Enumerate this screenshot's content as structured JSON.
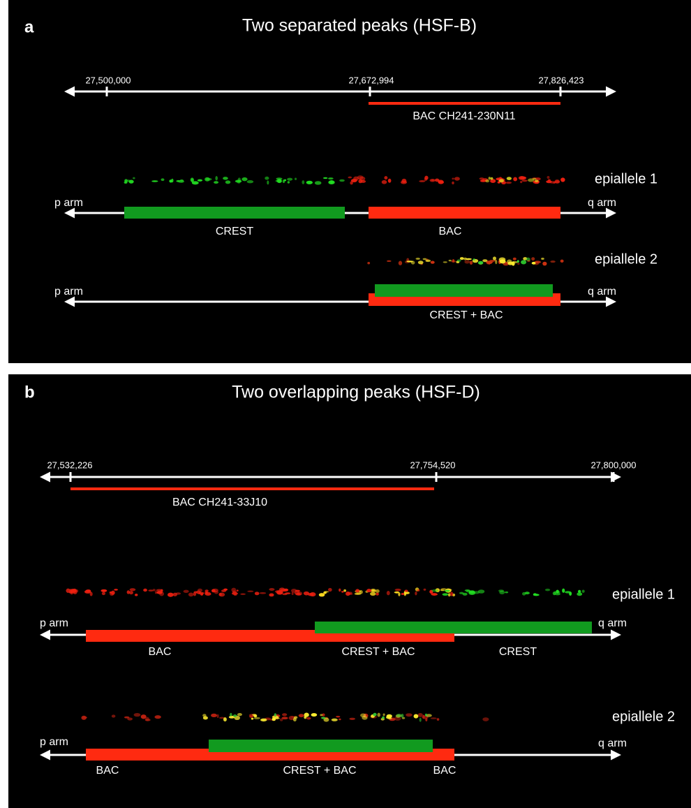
{
  "panels": [
    {
      "label": "a",
      "title": "Two separated peaks (HSF-B)",
      "scale_ticks": [
        "27,500,000",
        "27,672,994",
        "27,826,423"
      ],
      "bac": "BAC CH241-230N11",
      "fibers": [
        {
          "label": "epiallele 1",
          "p_arm": "p arm",
          "q_arm": "q arm",
          "segments": [
            "CREST",
            "BAC"
          ]
        },
        {
          "label": "epiallele 2",
          "p_arm": "p arm",
          "q_arm": "q arm",
          "segments": [
            "CREST + BAC"
          ]
        }
      ]
    },
    {
      "label": "b",
      "title": "Two overlapping peaks (HSF-D)",
      "scale_ticks": [
        "27,532,226",
        "27,754,520",
        "27,800,000"
      ],
      "bac": "BAC CH241-33J10",
      "fibers": [
        {
          "label": "epiallele 1",
          "p_arm": "p arm",
          "q_arm": "q arm",
          "segments": [
            "BAC",
            "CREST + BAC",
            "CREST"
          ]
        },
        {
          "label": "epiallele 2",
          "p_arm": "p arm",
          "q_arm": "q arm",
          "segments": [
            "BAC",
            "CREST + BAC",
            "BAC"
          ]
        }
      ]
    }
  ]
}
